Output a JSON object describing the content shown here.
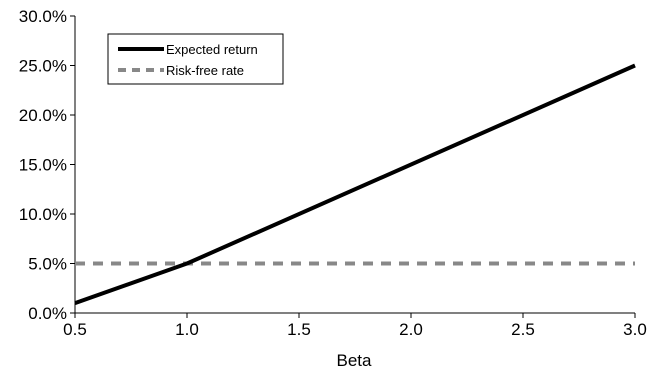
{
  "chart_data": {
    "type": "line",
    "title": "",
    "xlabel": "Beta",
    "ylabel": "",
    "xlim": [
      0.5,
      3.0
    ],
    "ylim": [
      0.0,
      30.0
    ],
    "x_ticks": [
      0.5,
      1.0,
      1.5,
      2.0,
      2.5,
      3.0
    ],
    "x_tick_labels": [
      "0.5",
      "1.0",
      "1.5",
      "2.0",
      "2.5",
      "3.0"
    ],
    "y_ticks": [
      0,
      5,
      10,
      15,
      20,
      25,
      30
    ],
    "y_tick_labels": [
      "0.0%",
      "5.0%",
      "10.0%",
      "15.0%",
      "20.0%",
      "25.0%",
      "30.0%"
    ],
    "grid": false,
    "legend_position": "top-left",
    "series": [
      {
        "name": "Expected return",
        "style": "solid",
        "color": "#000000",
        "x": [
          0.5,
          1.0,
          3.0
        ],
        "y": [
          1.0,
          5.0,
          25.0
        ]
      },
      {
        "name": "Risk-free rate",
        "style": "dashed",
        "color": "#888888",
        "x": [
          0.5,
          3.0
        ],
        "y": [
          5.0,
          5.0
        ]
      }
    ]
  }
}
